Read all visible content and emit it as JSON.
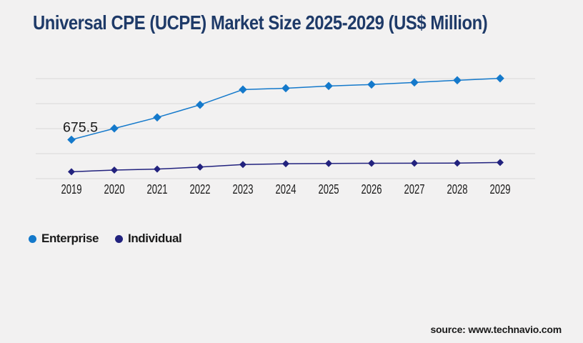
{
  "title": "Universal CPE (UCPE) Market Size 2025-2029 (US$ Million)",
  "source_label": "source: www.technavio.com",
  "colors": {
    "background": "#F2F1F1",
    "title": "#1E3A68",
    "grid": "#D9D9D9",
    "axis_text": "#1A1A1A",
    "enterprise": "#1479CB",
    "individual": "#22227E"
  },
  "chart_data": {
    "type": "line",
    "title": "Universal CPE (UCPE) Market Size 2025-2029 (US$ Million)",
    "categories": [
      "2019",
      "2020",
      "2021",
      "2022",
      "2023",
      "2024",
      "2025",
      "2026",
      "2027",
      "2028",
      "2029"
    ],
    "series": [
      {
        "name": "Enterprise",
        "color": "#1479CB",
        "values": [
          675.5,
          871,
          1062,
          1280,
          1545,
          1568,
          1607,
          1632,
          1669,
          1706,
          1739
        ]
      },
      {
        "name": "Individual",
        "color": "#22227E",
        "values": [
          120,
          149,
          165,
          202,
          244,
          258,
          263,
          267,
          268,
          270,
          281
        ]
      }
    ],
    "annotations": [
      {
        "series": "Enterprise",
        "category": "2019",
        "text": "675.5"
      }
    ],
    "xlabel": "",
    "ylabel": "",
    "ylim": [
      0,
      1735
    ],
    "grid": true,
    "gridline_count": 5,
    "y_axis_labels_visible": false,
    "legend_position": "bottom-left",
    "marker": "diamond"
  }
}
